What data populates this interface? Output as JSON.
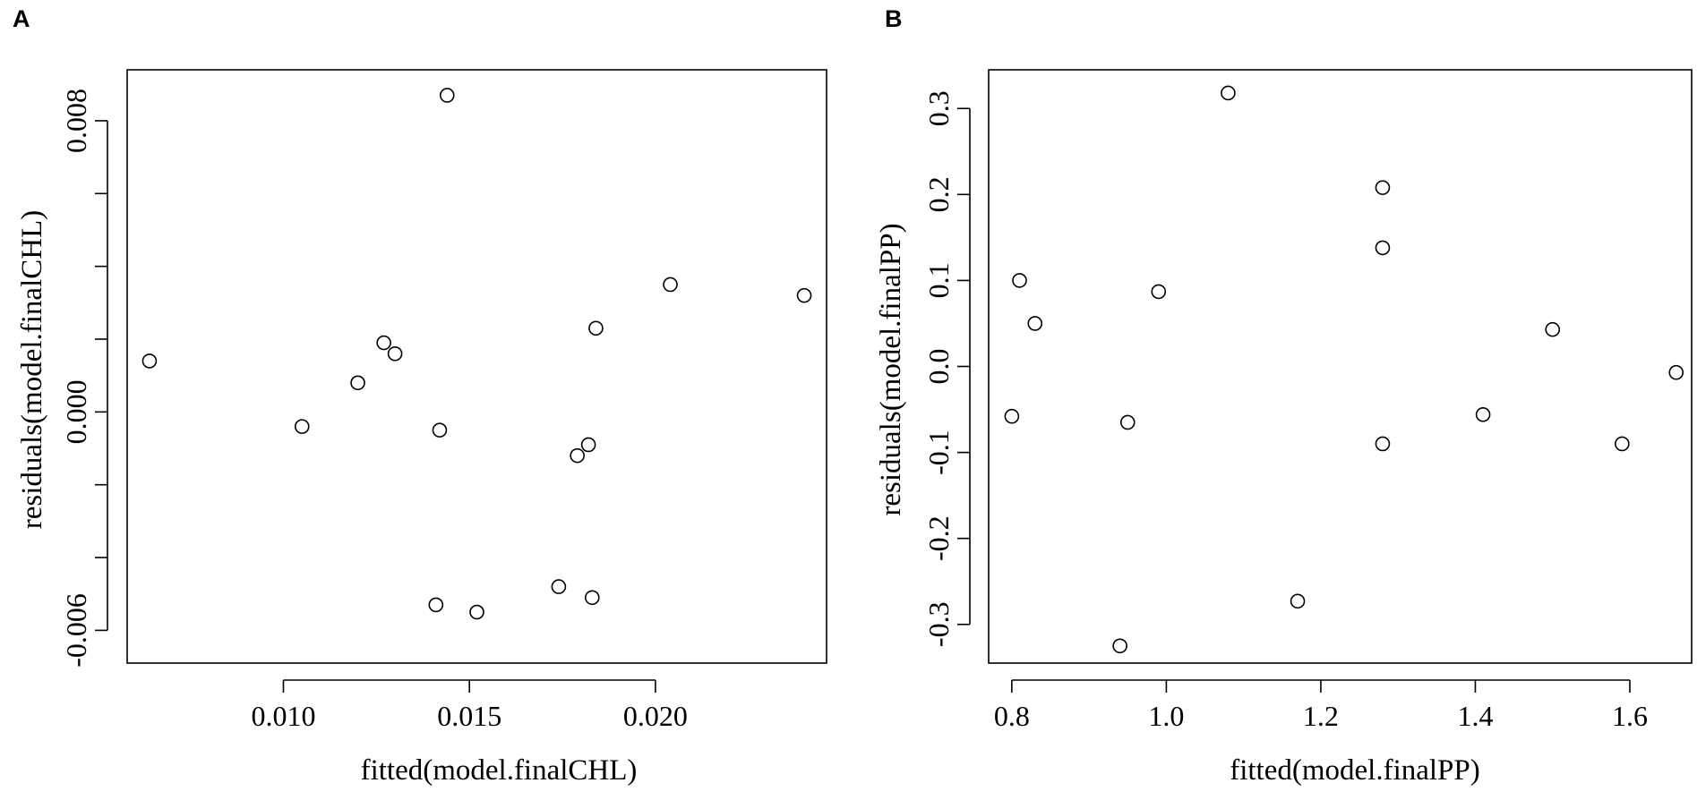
{
  "chart_data": [
    {
      "panel": "A",
      "type": "scatter",
      "xlabel": "fitted(model.finalCHL)",
      "ylabel": "residuals(model.finalCHL)",
      "xlim": [
        0.0058,
        0.0246
      ],
      "ylim": [
        -0.0069,
        0.0094
      ],
      "xticks": [
        0.01,
        0.015,
        0.02
      ],
      "xtick_labels": [
        "0.010",
        "0.015",
        "0.020"
      ],
      "yticks": [
        -0.006,
        -0.004,
        -0.002,
        0.0,
        0.002,
        0.004,
        0.006,
        0.008
      ],
      "ytick_labels": [
        "-0.006",
        "",
        "",
        "0.000",
        "",
        "",
        "",
        "0.008"
      ],
      "grid": false,
      "x": [
        0.0064,
        0.0105,
        0.012,
        0.0127,
        0.013,
        0.0141,
        0.0142,
        0.0144,
        0.0152,
        0.0174,
        0.0179,
        0.0182,
        0.0183,
        0.0184,
        0.0204,
        0.024
      ],
      "y": [
        0.0014,
        -0.0004,
        0.0008,
        0.0019,
        0.0016,
        -0.0053,
        -0.0005,
        0.0087,
        -0.0055,
        -0.0048,
        -0.0012,
        -0.0009,
        -0.0051,
        0.0023,
        0.0035,
        0.0032
      ]
    },
    {
      "panel": "B",
      "type": "scatter",
      "xlabel": "fitted(model.finalPP)",
      "ylabel": "residuals(model.finalPP)",
      "xlim": [
        0.77,
        1.68
      ],
      "ylim": [
        -0.345,
        0.345
      ],
      "xticks": [
        0.8,
        1.0,
        1.2,
        1.4,
        1.6
      ],
      "xtick_labels": [
        "0.8",
        "1.0",
        "1.2",
        "1.4",
        "1.6"
      ],
      "yticks": [
        -0.3,
        -0.2,
        -0.1,
        0.0,
        0.1,
        0.2,
        0.3
      ],
      "ytick_labels": [
        "-0.3",
        "-0.2",
        "-0.1",
        "0.0",
        "0.1",
        "0.2",
        "0.3"
      ],
      "grid": false,
      "x": [
        0.8,
        0.81,
        0.83,
        0.94,
        0.95,
        0.99,
        1.08,
        1.17,
        1.28,
        1.28,
        1.28,
        1.41,
        1.5,
        1.59,
        1.66
      ],
      "y": [
        -0.058,
        0.1,
        0.05,
        -0.325,
        -0.065,
        0.087,
        0.318,
        -0.273,
        0.208,
        0.138,
        -0.09,
        -0.056,
        0.043,
        -0.09,
        -0.007
      ]
    }
  ]
}
